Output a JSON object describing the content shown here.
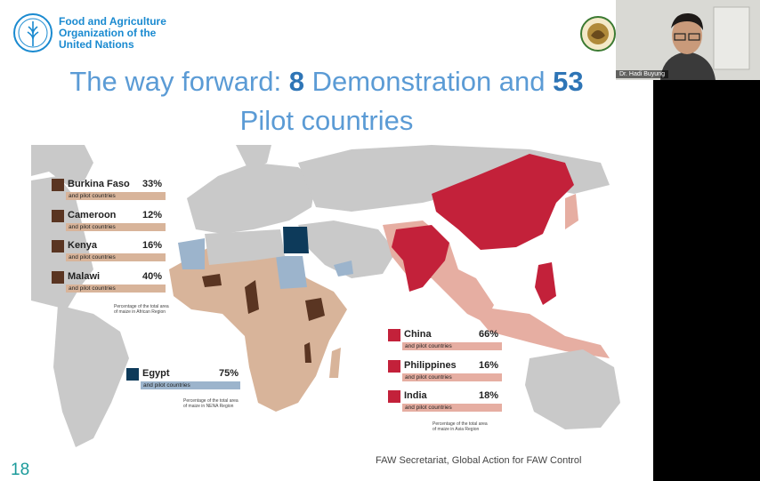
{
  "header": {
    "org_lines": [
      "Food and Agriculture",
      "Organization of the",
      "United Nations"
    ],
    "title_part1": "The way forward: ",
    "title_num1": "8",
    "title_part2": " Demonstration and ",
    "title_num2": "53",
    "title_line2": "Pilot countries"
  },
  "africa_legend": [
    {
      "country": "Burkina Faso",
      "pct": "33%",
      "sub": "and pilot countries"
    },
    {
      "country": "Cameroon",
      "pct": "12%",
      "sub": "and pilot countries"
    },
    {
      "country": "Kenya",
      "pct": "16%",
      "sub": "and pilot countries"
    },
    {
      "country": "Malawi",
      "pct": "40%",
      "sub": "and pilot countries"
    }
  ],
  "africa_note": [
    "Percentage of the total area",
    "of maize in African Region"
  ],
  "nena_legend": {
    "country": "Egypt",
    "pct": "75%",
    "sub": "and pilot countries"
  },
  "nena_note": [
    "Percentage of the total area",
    "of maize in NENA Region"
  ],
  "asia_legend": [
    {
      "country": "China",
      "pct": "66%",
      "sub": "and pilot countries"
    },
    {
      "country": "Philippines",
      "pct": "16%",
      "sub": "and pilot countries"
    },
    {
      "country": "India",
      "pct": "18%",
      "sub": "and pilot countries"
    }
  ],
  "asia_note": [
    "Percentage of the total area",
    "of maize in Asia Region"
  ],
  "slide_number": "18",
  "footer": "FAW Secretariat, Global Action for FAW Control",
  "video": {
    "participant_name": "Dr. Hadi Buyung"
  },
  "colors": {
    "africa_demo": "#5a3522",
    "africa_pilot": "#d8b49a",
    "nena_demo": "#0d3a5a",
    "nena_pilot": "#9cb4cc",
    "asia_demo": "#c3213a",
    "asia_pilot": "#e6aea2",
    "land": "#c9c9c9"
  }
}
